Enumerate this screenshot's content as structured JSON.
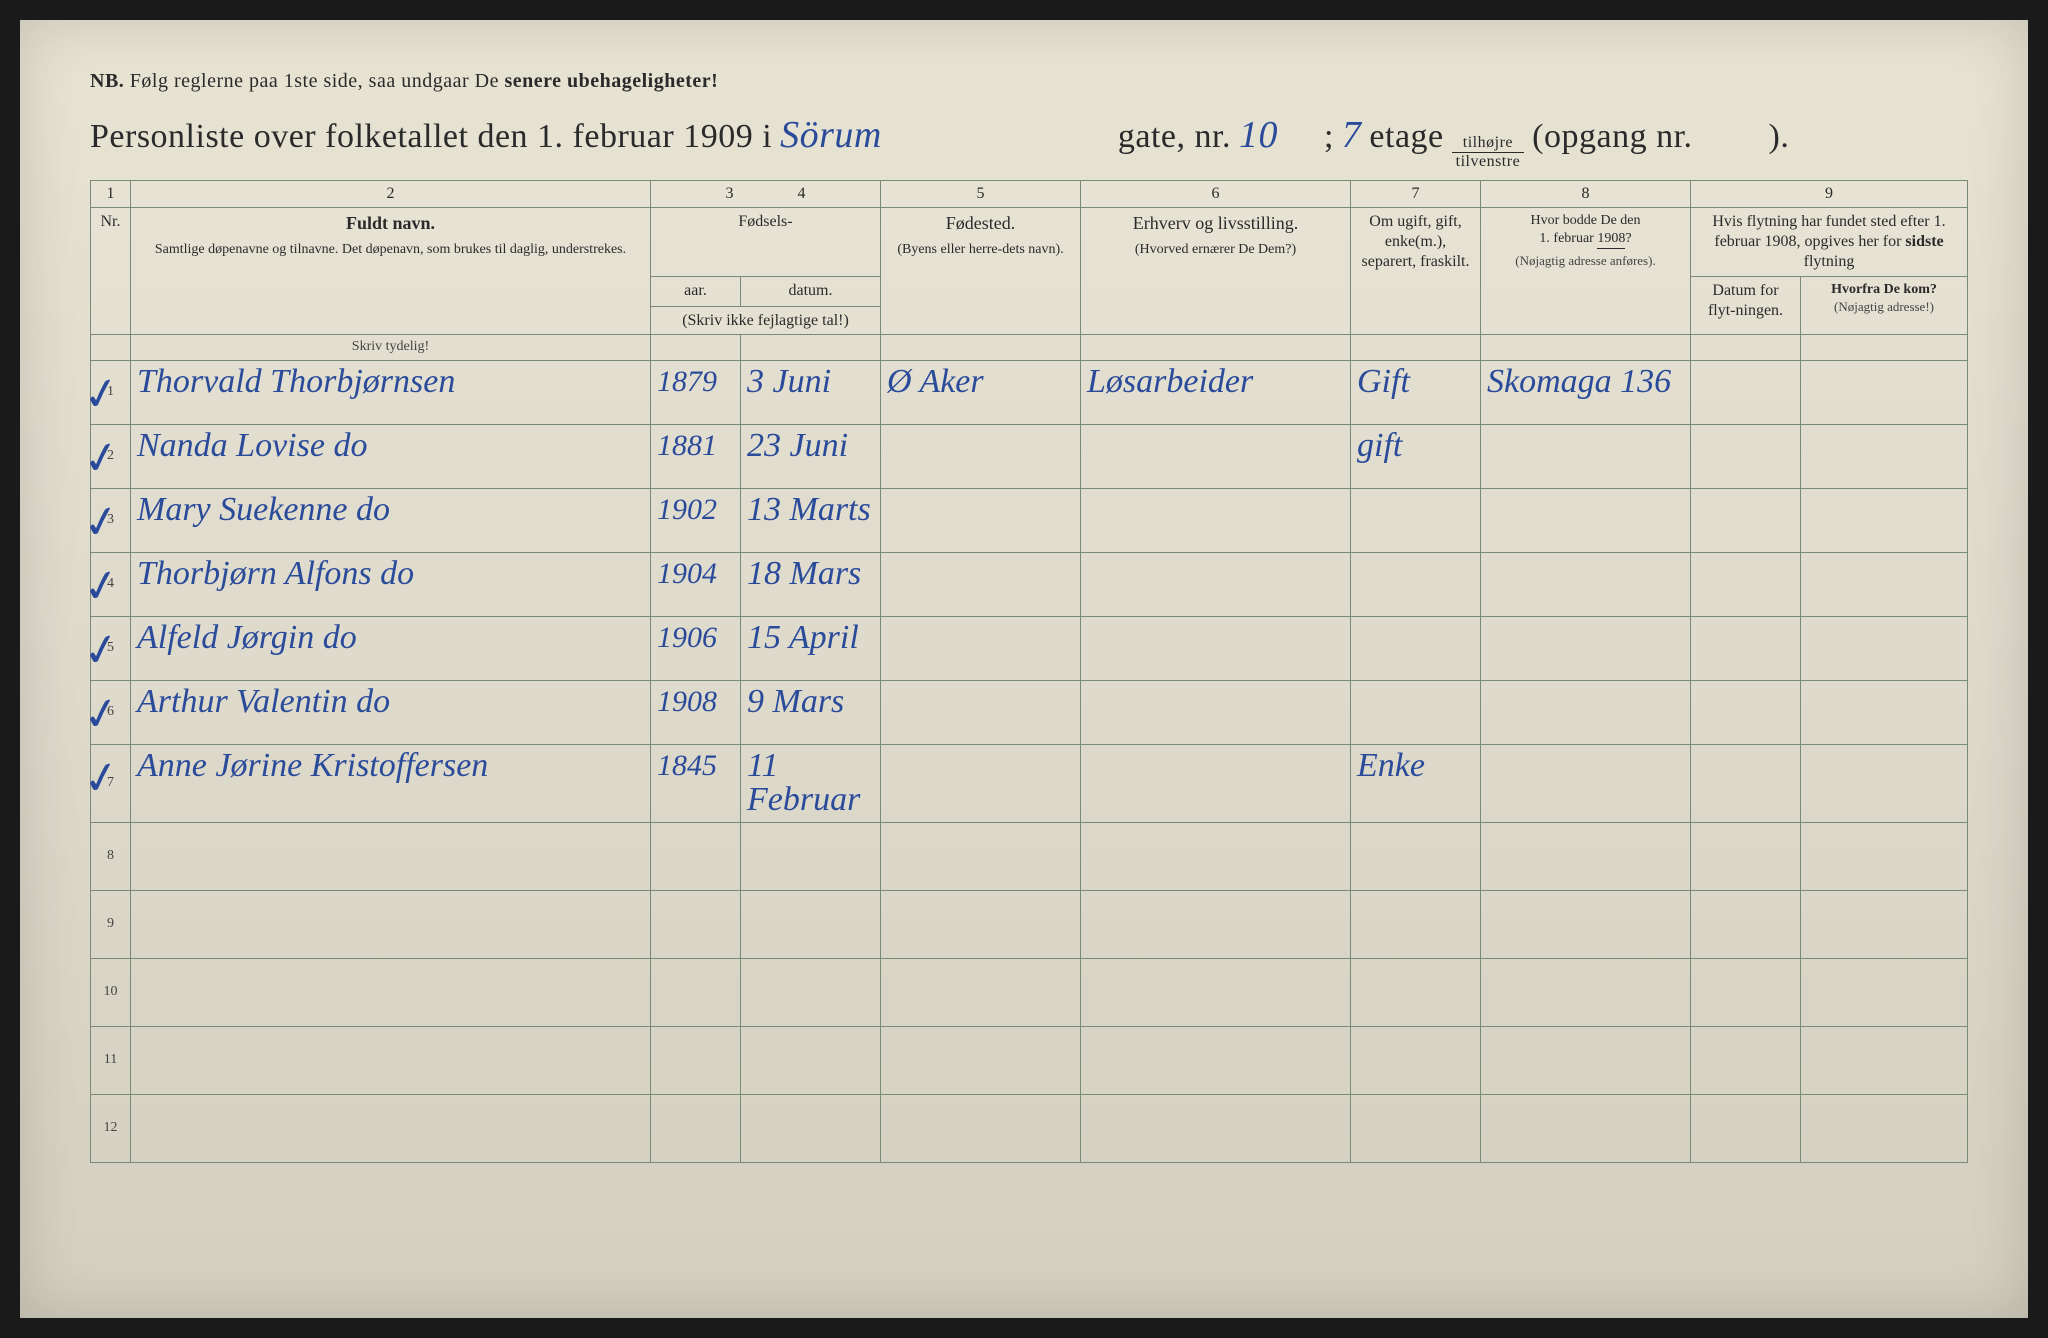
{
  "notice": {
    "nb": "NB.",
    "text1": "Følg reglerne paa 1ste side, saa undgaar De",
    "bold": "senere ubehageligheter!"
  },
  "title": {
    "prefix": "Personliste over folketallet den 1. februar 1909 i",
    "street_hw": "Sörum",
    "gate_nr_label": "gate, nr.",
    "gate_nr_hw": "10",
    "semicolon": ";",
    "etage_hw": "7",
    "etage_label": "etage",
    "fraction_top": "tilhøjre",
    "fraction_bot": "tilvenstre",
    "opgang_label": "(opgang nr.",
    "opgang_close": ")."
  },
  "colnums": [
    "1",
    "2",
    "3",
    "4",
    "5",
    "6",
    "7",
    "8",
    "9"
  ],
  "headers": {
    "nr": "Nr.",
    "name_main": "Fuldt navn.",
    "name_sub": "Samtlige døpenavne og tilnavne. Det døpenavn, som brukes til daglig, understrekes.",
    "fodsels": "Fødsels-",
    "aar": "aar.",
    "datum": "datum.",
    "aar_sub": "(Skriv ikke fejlagtige tal!)",
    "fodested_main": "Fødested.",
    "fodested_sub": "(Byens eller herre-dets navn).",
    "erhverv_main": "Erhverv og livsstilling.",
    "erhverv_sub": "(Hvorved ernærer De Dem?)",
    "status": "Om ugift, gift, enke(m.), separert, fraskilt.",
    "addr1908_main": "Hvor bodde De den 1. februar 1908?",
    "addr1908_sub": "(Nøjagtig adresse anføres).",
    "move_header": "Hvis flytning har fundet sted efter 1. februar 1908, opgives her for sidste flytning",
    "move_date": "Datum for flyt-ningen.",
    "move_from_main": "Hvorfra De kom?",
    "move_from_sub": "(Nøjagtig adresse!)"
  },
  "instruction_row": "Skriv tydelig!",
  "rows": [
    {
      "nr": "1",
      "check": true,
      "name": "Thorvald Thorbjørnsen",
      "year": "1879",
      "date": "3 Juni",
      "place": "Ø Aker",
      "occ": "Løsarbeider",
      "status": "Gift",
      "addr1908": "Skomaga 136"
    },
    {
      "nr": "2",
      "check": true,
      "name": "Nanda Lovise   do",
      "year": "1881",
      "date": "23 Juni",
      "place": "",
      "occ": "",
      "status": "gift",
      "addr1908": ""
    },
    {
      "nr": "3",
      "check": true,
      "name": "Mary Suekenne     do",
      "year": "1902",
      "date": "13 Marts",
      "place": "",
      "occ": "",
      "status": "",
      "addr1908": ""
    },
    {
      "nr": "4",
      "check": true,
      "name": "Thorbjørn Alfons   do",
      "year": "1904",
      "date": "18 Mars",
      "place": "",
      "occ": "",
      "status": "",
      "addr1908": ""
    },
    {
      "nr": "5",
      "check": true,
      "name": "Alfeld Jørgin     do",
      "year": "1906",
      "date": "15 April",
      "place": "",
      "occ": "",
      "status": "",
      "addr1908": ""
    },
    {
      "nr": "6",
      "check": true,
      "name": "Arthur Valentin   do",
      "year": "1908",
      "date": "9 Mars",
      "place": "",
      "occ": "",
      "status": "",
      "addr1908": ""
    },
    {
      "nr": "7",
      "check": true,
      "name": "Anne Jørine Kristoffersen",
      "year": "1845",
      "date": "11 Februar",
      "place": "",
      "occ": "",
      "status": "Enke",
      "addr1908": ""
    },
    {
      "nr": "8",
      "check": false,
      "name": "",
      "year": "",
      "date": "",
      "place": "",
      "occ": "",
      "status": "",
      "addr1908": ""
    },
    {
      "nr": "9",
      "check": false,
      "name": "",
      "year": "",
      "date": "",
      "place": "",
      "occ": "",
      "status": "",
      "addr1908": ""
    },
    {
      "nr": "10",
      "check": false,
      "name": "",
      "year": "",
      "date": "",
      "place": "",
      "occ": "",
      "status": "",
      "addr1908": ""
    },
    {
      "nr": "11",
      "check": false,
      "name": "",
      "year": "",
      "date": "",
      "place": "",
      "occ": "",
      "status": "",
      "addr1908": ""
    },
    {
      "nr": "12",
      "check": false,
      "name": "",
      "year": "",
      "date": "",
      "place": "",
      "occ": "",
      "status": "",
      "addr1908": ""
    }
  ]
}
